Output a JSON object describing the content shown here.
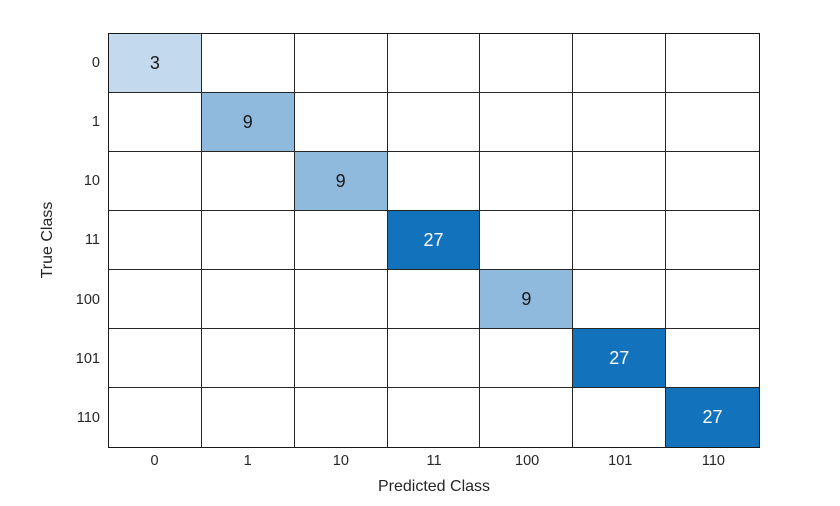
{
  "figure": {
    "background": "#ffffff",
    "axis_line_color": "#1a1a1a",
    "grid_line_color": "#262626",
    "text_color": "#262626"
  },
  "chart_data": {
    "type": "heatmap",
    "subtype": "confusion_matrix",
    "title": "",
    "xlabel": "Predicted Class",
    "ylabel": "True Class",
    "x_categories": [
      "0",
      "1",
      "10",
      "11",
      "100",
      "101",
      "110"
    ],
    "y_categories": [
      "0",
      "1",
      "10",
      "11",
      "100",
      "101",
      "110"
    ],
    "grid": true,
    "legend_position": "none",
    "matrix": [
      [
        3,
        null,
        null,
        null,
        null,
        null,
        null
      ],
      [
        null,
        9,
        null,
        null,
        null,
        null,
        null
      ],
      [
        null,
        null,
        9,
        null,
        null,
        null,
        null
      ],
      [
        null,
        null,
        null,
        27,
        null,
        null,
        null
      ],
      [
        null,
        null,
        null,
        null,
        9,
        null,
        null
      ],
      [
        null,
        null,
        null,
        null,
        null,
        27,
        null
      ],
      [
        null,
        null,
        null,
        null,
        null,
        null,
        27
      ]
    ],
    "diagonal_values": [
      3,
      9,
      9,
      27,
      9,
      27,
      27
    ],
    "cells": [
      {
        "row": 0,
        "col": 0,
        "label": "3",
        "bg": "#c3daee",
        "fg": "#1a1a1a"
      },
      {
        "row": 1,
        "col": 1,
        "label": "9",
        "bg": "#90badd",
        "fg": "#1a1a1a"
      },
      {
        "row": 2,
        "col": 2,
        "label": "9",
        "bg": "#90badd",
        "fg": "#1a1a1a"
      },
      {
        "row": 3,
        "col": 3,
        "label": "27",
        "bg": "#1372bc",
        "fg": "#ffffff"
      },
      {
        "row": 4,
        "col": 4,
        "label": "9",
        "bg": "#90badd",
        "fg": "#1a1a1a"
      },
      {
        "row": 5,
        "col": 5,
        "label": "27",
        "bg": "#1372bc",
        "fg": "#ffffff"
      },
      {
        "row": 6,
        "col": 6,
        "label": "27",
        "bg": "#1372bc",
        "fg": "#ffffff"
      }
    ],
    "empty_cell_color": "#ffffff"
  }
}
